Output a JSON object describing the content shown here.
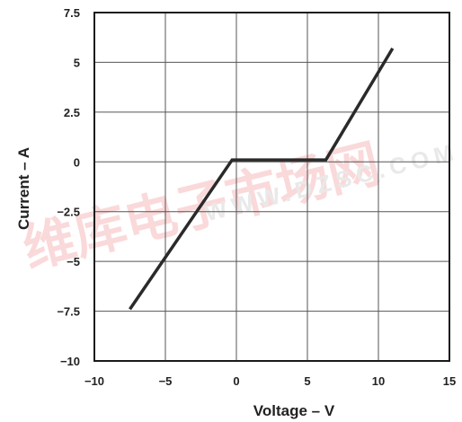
{
  "chart_data": {
    "type": "line",
    "title": "",
    "xlabel": "Voltage – V",
    "ylabel": "Current – A",
    "xlim": [
      -10,
      15
    ],
    "ylim": [
      -10,
      7.5
    ],
    "x_ticks": [
      -10,
      -5,
      0,
      5,
      10,
      15
    ],
    "x_tick_labels": [
      "−10",
      "−5",
      "0",
      "5",
      "10",
      "15"
    ],
    "y_ticks": [
      7.5,
      5,
      2.5,
      0,
      -2.5,
      -5,
      -7.5,
      -10
    ],
    "y_tick_labels": [
      "7.5",
      "5",
      "2.5",
      "0",
      "−2.5",
      "−5",
      "−7.5",
      "−10"
    ],
    "grid": true,
    "series": [
      {
        "x": [
          -7.5,
          -0.3,
          6.3,
          11
        ],
        "y": [
          -7.4,
          0.1,
          0.1,
          5.7
        ],
        "color": "#2a2a2a"
      }
    ]
  },
  "watermark": {
    "text_cn": "维库电子市场网",
    "text_url": "WWW.DZSC.COM",
    "color": "#e8343a"
  }
}
